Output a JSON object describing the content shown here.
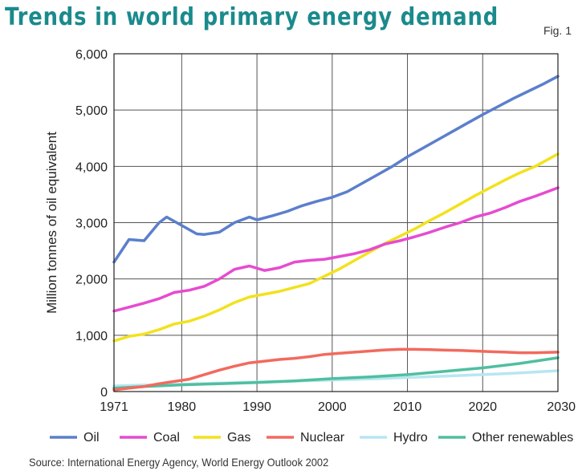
{
  "title": "Trends in world primary energy demand",
  "fig_label": "Fig. 1",
  "source": "Source: International Energy Agency, World Energy Outlook 2002",
  "chart_data": {
    "type": "line",
    "title": "Trends in world primary energy demand",
    "xlabel": "",
    "ylabel": "Million tonnes of oil equivalent",
    "xlim": [
      1971,
      2030
    ],
    "ylim": [
      0,
      6000
    ],
    "x_ticks": [
      1971,
      1980,
      1990,
      2000,
      2010,
      2020,
      2030
    ],
    "x_tick_labels": [
      "1971",
      "1980",
      "1990",
      "2000",
      "2010",
      "2020",
      "2030"
    ],
    "y_ticks": [
      0,
      1000,
      2000,
      3000,
      4000,
      5000,
      6000
    ],
    "y_tick_labels": [
      "0",
      "1,000",
      "2,000",
      "3,000",
      "4,000",
      "5,000",
      "6,000"
    ],
    "grid": true,
    "legend_position": "bottom",
    "series": [
      {
        "name": "Oil",
        "color": "#5b7fcc",
        "x": [
          1971,
          1973,
          1975,
          1977,
          1978,
          1980,
          1982,
          1983,
          1985,
          1987,
          1989,
          1990,
          1992,
          1994,
          1996,
          1998,
          2000,
          2002,
          2004,
          2006,
          2008,
          2010,
          2012,
          2014,
          2016,
          2018,
          2020,
          2022,
          2024,
          2026,
          2028,
          2030
        ],
        "y": [
          2300,
          2700,
          2680,
          3000,
          3100,
          2950,
          2800,
          2790,
          2830,
          3000,
          3100,
          3050,
          3120,
          3200,
          3300,
          3380,
          3450,
          3550,
          3700,
          3850,
          4000,
          4170,
          4320,
          4470,
          4620,
          4770,
          4920,
          5060,
          5200,
          5330,
          5460,
          5600
        ]
      },
      {
        "name": "Coal",
        "color": "#e64bd0",
        "x": [
          1971,
          1973,
          1975,
          1977,
          1979,
          1981,
          1983,
          1985,
          1987,
          1989,
          1991,
          1993,
          1995,
          1997,
          1999,
          2001,
          2003,
          2005,
          2007,
          2009,
          2011,
          2013,
          2015,
          2017,
          2019,
          2021,
          2023,
          2025,
          2027,
          2030
        ],
        "y": [
          1430,
          1500,
          1570,
          1650,
          1760,
          1800,
          1870,
          2000,
          2170,
          2230,
          2150,
          2200,
          2300,
          2330,
          2350,
          2400,
          2450,
          2520,
          2620,
          2680,
          2750,
          2830,
          2920,
          3000,
          3100,
          3170,
          3270,
          3380,
          3470,
          3620
        ]
      },
      {
        "name": "Gas",
        "color": "#f2e21c",
        "x": [
          1971,
          1973,
          1975,
          1977,
          1979,
          1981,
          1983,
          1985,
          1987,
          1989,
          1991,
          1993,
          1995,
          1997,
          1999,
          2001,
          2003,
          2005,
          2007,
          2009,
          2011,
          2013,
          2015,
          2017,
          2019,
          2021,
          2023,
          2025,
          2027,
          2030
        ],
        "y": [
          900,
          980,
          1020,
          1100,
          1200,
          1250,
          1340,
          1450,
          1580,
          1680,
          1730,
          1780,
          1850,
          1920,
          2050,
          2180,
          2330,
          2480,
          2630,
          2760,
          2890,
          3040,
          3180,
          3330,
          3480,
          3620,
          3760,
          3890,
          4000,
          4220
        ]
      },
      {
        "name": "Nuclear",
        "color": "#f26a5e",
        "x": [
          1971,
          1973,
          1975,
          1977,
          1979,
          1981,
          1983,
          1985,
          1987,
          1989,
          1991,
          1993,
          1995,
          1997,
          1999,
          2001,
          2003,
          2005,
          2007,
          2009,
          2011,
          2013,
          2015,
          2017,
          2019,
          2021,
          2023,
          2025,
          2027,
          2030
        ],
        "y": [
          30,
          60,
          90,
          140,
          180,
          220,
          300,
          380,
          450,
          510,
          540,
          570,
          590,
          620,
          660,
          680,
          700,
          720,
          740,
          750,
          750,
          745,
          735,
          730,
          720,
          710,
          700,
          690,
          690,
          700
        ]
      },
      {
        "name": "Hydro",
        "color": "#b8e6f2",
        "x": [
          1971,
          1975,
          1980,
          1985,
          1990,
          1995,
          2000,
          2005,
          2010,
          2015,
          2020,
          2025,
          2030
        ],
        "y": [
          100,
          115,
          130,
          150,
          170,
          185,
          205,
          225,
          250,
          275,
          300,
          330,
          370
        ]
      },
      {
        "name": "Other renewables",
        "color": "#4fbf9f",
        "x": [
          1971,
          1975,
          1980,
          1985,
          1990,
          1995,
          2000,
          2005,
          2010,
          2015,
          2020,
          2025,
          2030
        ],
        "y": [
          60,
          90,
          120,
          140,
          160,
          190,
          230,
          260,
          300,
          360,
          420,
          500,
          600
        ]
      }
    ]
  }
}
